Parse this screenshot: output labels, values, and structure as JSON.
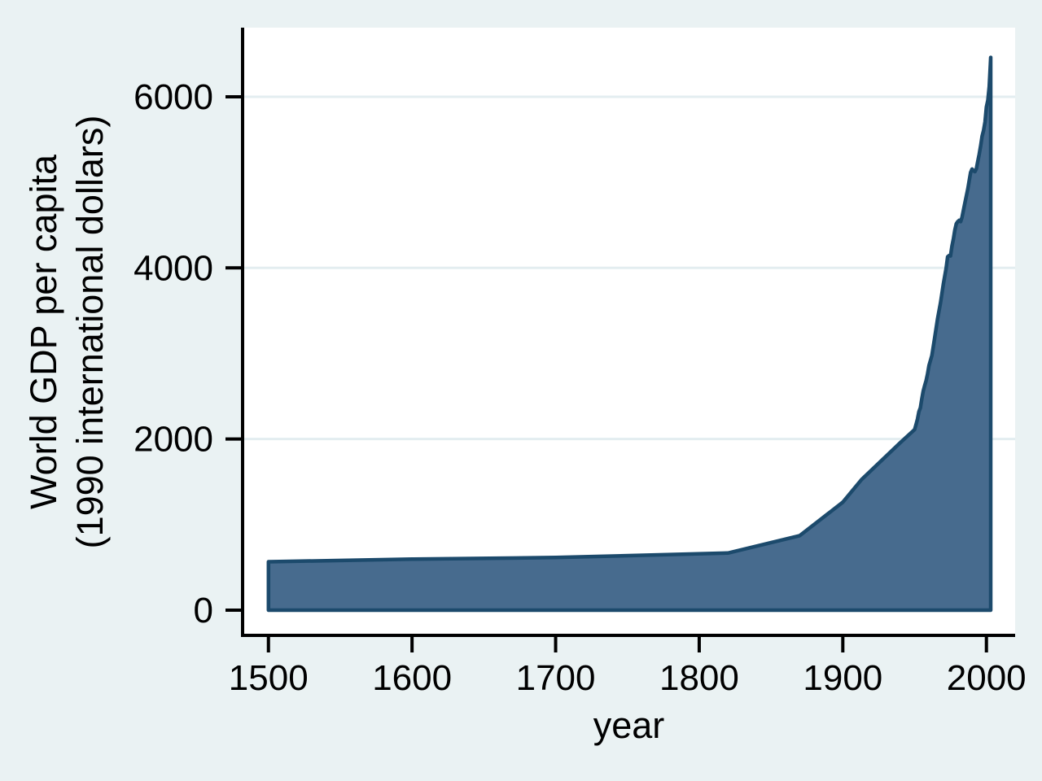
{
  "colors": {
    "background": "#eaf2f3",
    "plot_background": "#ffffff",
    "gridline": "#e3edf0",
    "axis": "#000000",
    "text": "#000000",
    "area_fill": "#476b8e",
    "area_outline": "#1c4a6c"
  },
  "chart_data": {
    "type": "area",
    "title": "",
    "xlabel": "year",
    "ylabel_line1": "World GDP per capita",
    "ylabel_line2": "(1990 international dollars)",
    "legend": "none",
    "grid": "horizontal gridlines at labeled y ticks above 0",
    "x_ticks": [
      1500,
      1600,
      1700,
      1800,
      1900,
      2000
    ],
    "y_ticks": [
      0,
      2000,
      4000,
      6000
    ],
    "xlim": [
      1482,
      2020
    ],
    "ylim": [
      -295,
      6808
    ],
    "series": [
      {
        "name": "World GDP per capita (1990 international dollars)",
        "points": [
          [
            1500,
            566
          ],
          [
            1600,
            596
          ],
          [
            1700,
            615
          ],
          [
            1820,
            667
          ],
          [
            1870,
            871
          ],
          [
            1900,
            1262
          ],
          [
            1913,
            1526
          ],
          [
            1940,
            1958
          ],
          [
            1950,
            2111
          ],
          [
            1951,
            2170
          ],
          [
            1952,
            2235
          ],
          [
            1953,
            2320
          ],
          [
            1954,
            2365
          ],
          [
            1955,
            2465
          ],
          [
            1956,
            2560
          ],
          [
            1957,
            2625
          ],
          [
            1958,
            2680
          ],
          [
            1959,
            2760
          ],
          [
            1960,
            2860
          ],
          [
            1962,
            2975
          ],
          [
            1964,
            3185
          ],
          [
            1966,
            3405
          ],
          [
            1968,
            3590
          ],
          [
            1970,
            3810
          ],
          [
            1972,
            4000
          ],
          [
            1973,
            4130
          ],
          [
            1974,
            4145
          ],
          [
            1975,
            4140
          ],
          [
            1976,
            4255
          ],
          [
            1977,
            4340
          ],
          [
            1978,
            4440
          ],
          [
            1979,
            4515
          ],
          [
            1980,
            4540
          ],
          [
            1981,
            4555
          ],
          [
            1982,
            4540
          ],
          [
            1983,
            4590
          ],
          [
            1985,
            4760
          ],
          [
            1987,
            4920
          ],
          [
            1989,
            5115
          ],
          [
            1990,
            5155
          ],
          [
            1991,
            5135
          ],
          [
            1992,
            5125
          ],
          [
            1993,
            5160
          ],
          [
            1994,
            5245
          ],
          [
            1995,
            5330
          ],
          [
            1996,
            5430
          ],
          [
            1997,
            5540
          ],
          [
            1998,
            5605
          ],
          [
            1999,
            5705
          ],
          [
            2000,
            5880
          ],
          [
            2001,
            5960
          ],
          [
            2002,
            6120
          ],
          [
            2003,
            6460
          ]
        ]
      }
    ]
  }
}
